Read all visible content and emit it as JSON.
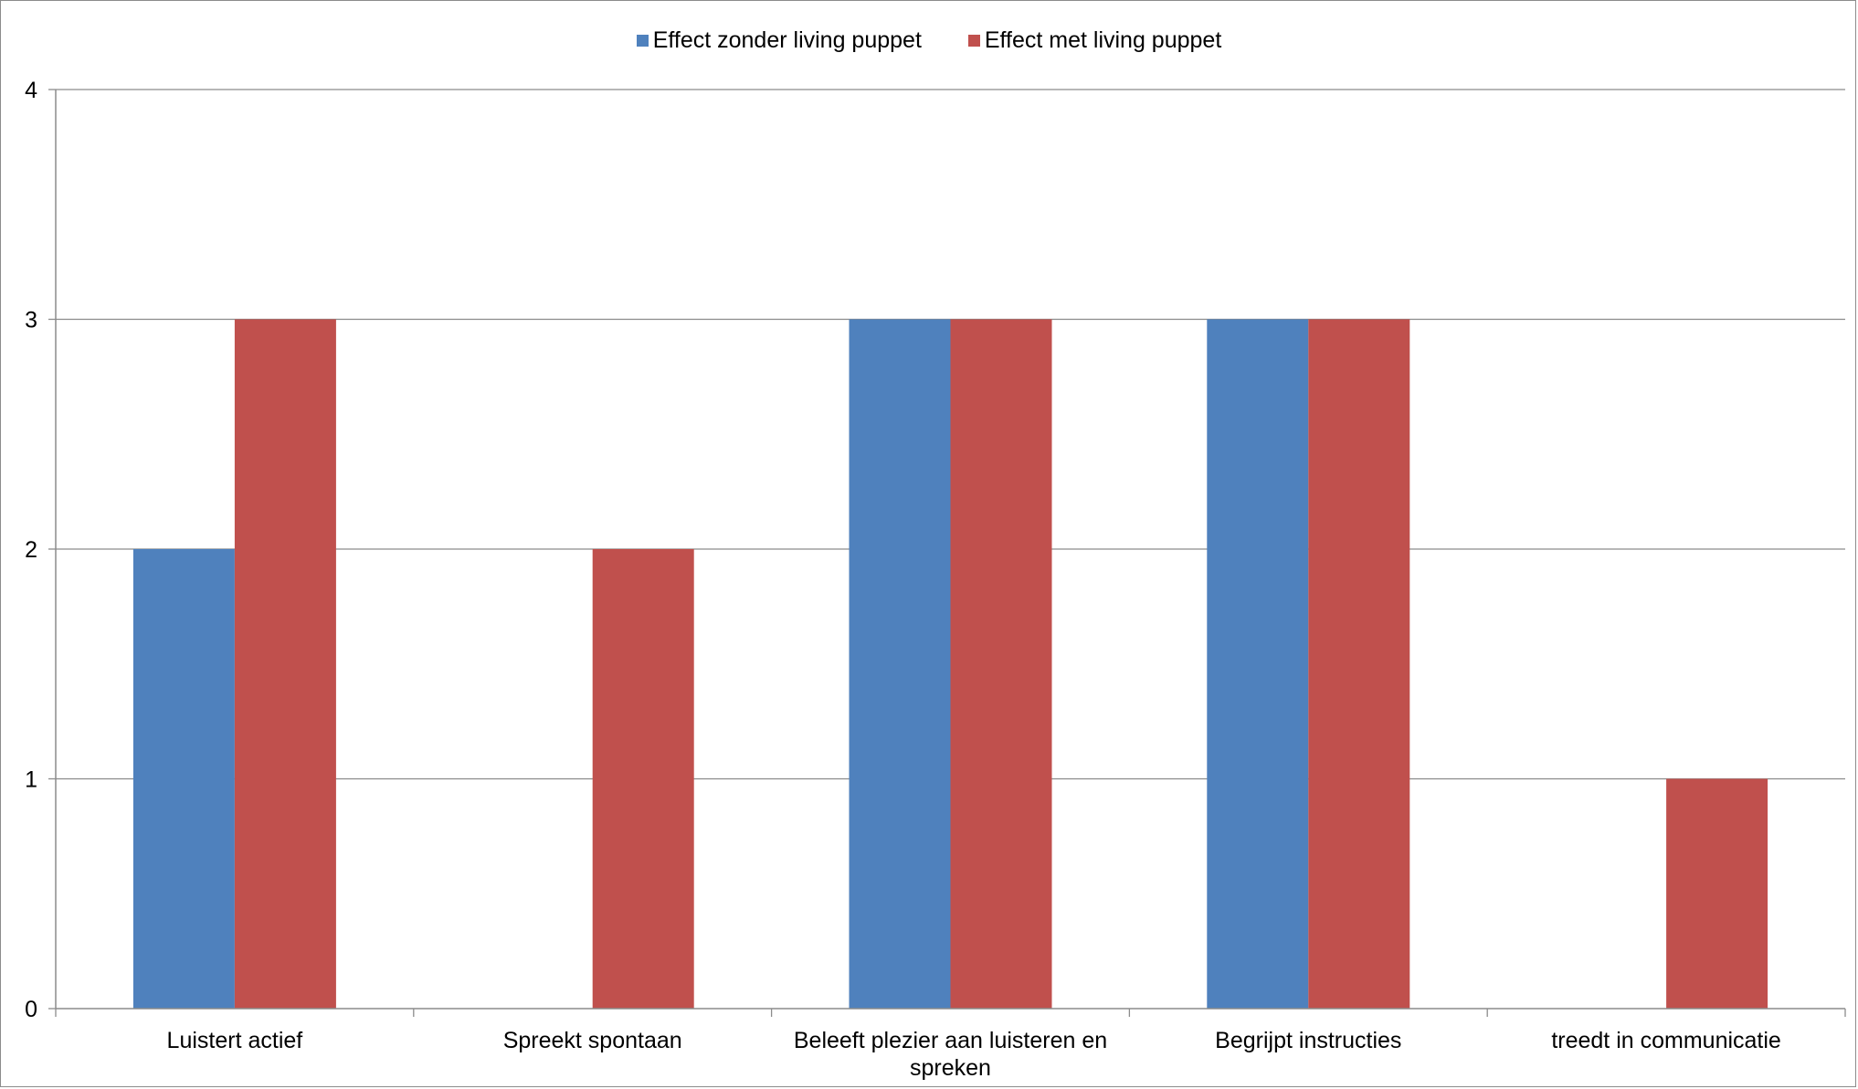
{
  "chart_data": {
    "type": "bar",
    "title": "",
    "xlabel": "",
    "ylabel": "",
    "categories": [
      "Luistert actief",
      "Spreekt spontaan",
      "Beleeft plezier aan luisteren en spreken",
      "Begrijpt instructies",
      "treedt in communicatie"
    ],
    "category_lines": [
      [
        "Luistert actief"
      ],
      [
        "Spreekt spontaan"
      ],
      [
        "Beleeft plezier aan luisteren en",
        "spreken"
      ],
      [
        "Begrijpt instructies"
      ],
      [
        "treedt in communicatie"
      ]
    ],
    "series": [
      {
        "name": "Effect zonder living puppet",
        "color": "#4F81BD",
        "values": [
          2,
          0,
          3,
          3,
          0
        ]
      },
      {
        "name": "Effect met living puppet",
        "color": "#C0504D",
        "values": [
          3,
          2,
          3,
          3,
          1
        ]
      }
    ],
    "ylim": [
      0,
      4
    ],
    "yticks": [
      "0",
      "1",
      "2",
      "3",
      "4"
    ],
    "grid": true,
    "legend_position": "top"
  }
}
